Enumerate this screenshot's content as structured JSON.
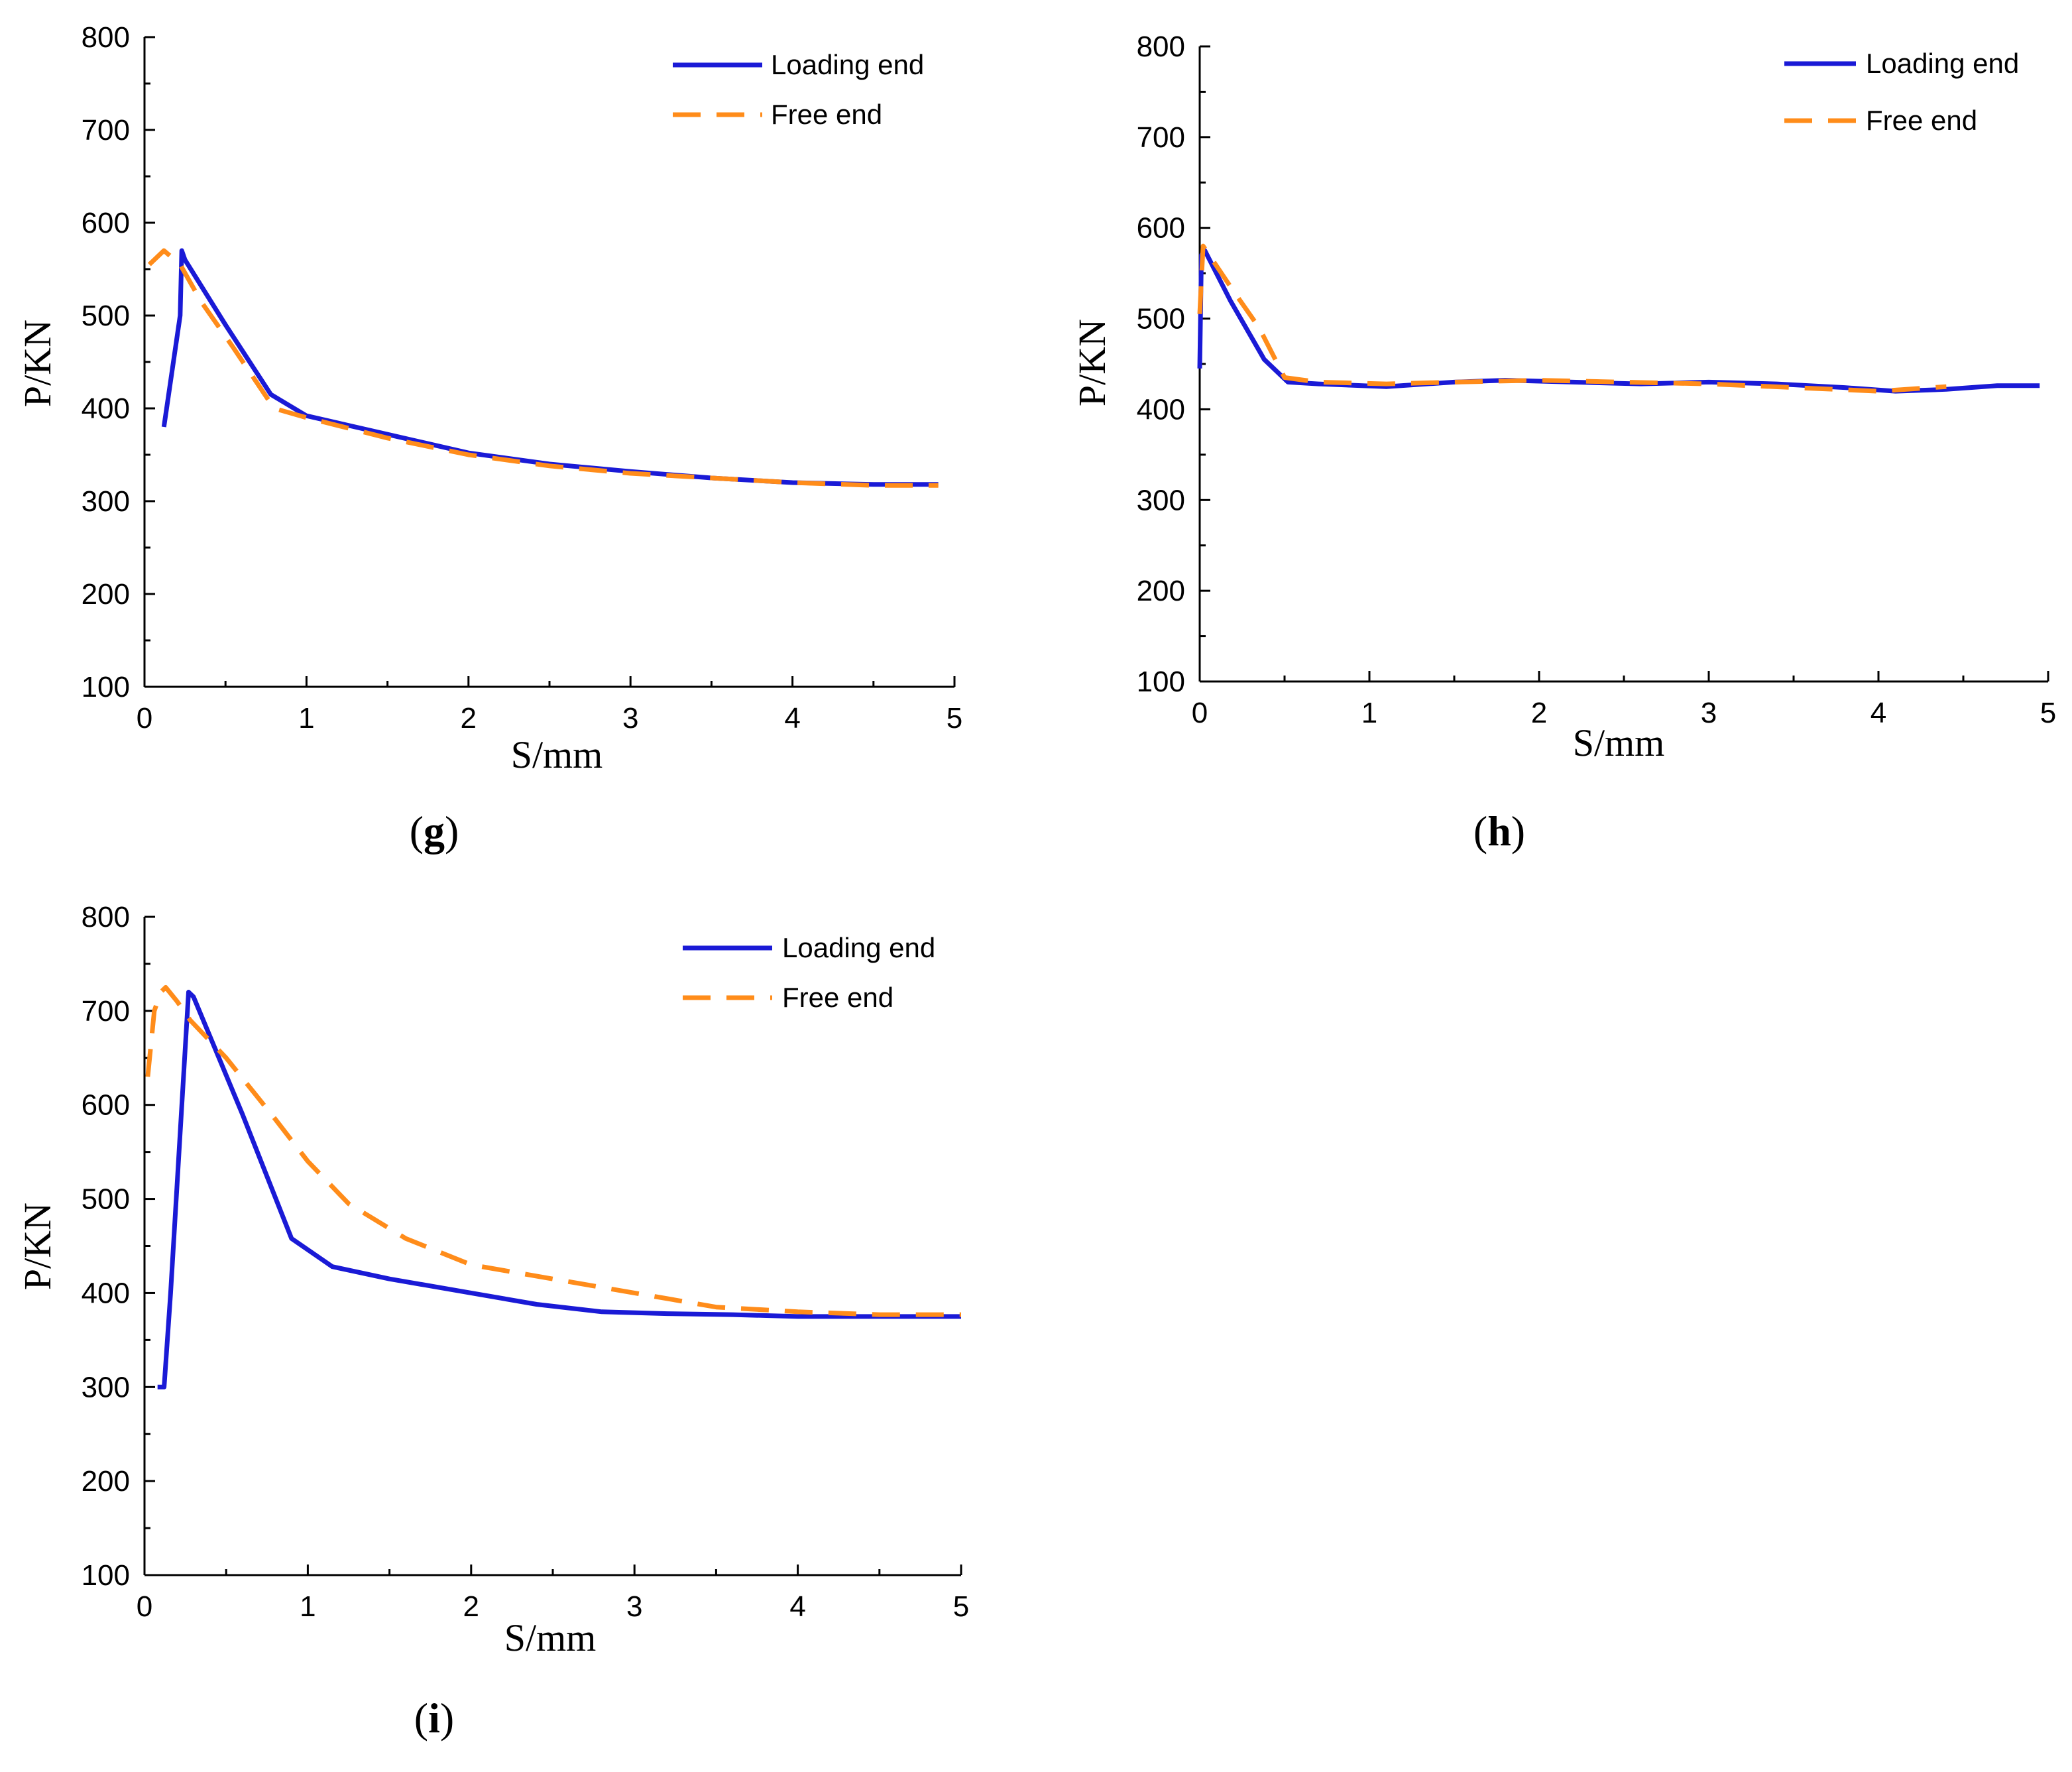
{
  "figure": {
    "charts": [
      {
        "id": "g",
        "panel_label": "g",
        "legend": {
          "placement": "top-right"
        }
      },
      {
        "id": "h",
        "panel_label": "h",
        "legend": {
          "placement": "top-right"
        }
      },
      {
        "id": "i",
        "panel_label": "i",
        "legend": {
          "placement": "top-right"
        }
      }
    ]
  },
  "colors": {
    "loading_end": "#1a1ad6",
    "free_end": "#ff8c1a",
    "axis": "#000000"
  },
  "chart_data": [
    {
      "type": "line",
      "panel": "g",
      "title": "",
      "xlabel": "S/mm",
      "ylabel": "P/KN",
      "xlim": [
        0,
        5
      ],
      "ylim": [
        100,
        800
      ],
      "xticks": [
        0,
        1,
        2,
        3,
        4,
        5
      ],
      "yticks": [
        100,
        200,
        300,
        400,
        500,
        600,
        700,
        800
      ],
      "grid": false,
      "series": [
        {
          "name": "Loading end",
          "style": "solid",
          "x": [
            0.12,
            0.22,
            0.23,
            0.25,
            0.5,
            0.78,
            1.0,
            1.5,
            2.0,
            2.5,
            3.0,
            3.5,
            4.0,
            4.5,
            4.9
          ],
          "y": [
            380,
            500,
            570,
            560,
            490,
            415,
            392,
            372,
            352,
            340,
            332,
            325,
            320,
            318,
            318
          ]
        },
        {
          "name": "Free end",
          "style": "dashed",
          "x": [
            0.03,
            0.12,
            0.22,
            0.35,
            0.55,
            0.8,
            1.0,
            1.5,
            2.0,
            2.5,
            3.0,
            3.5,
            4.0,
            4.5,
            4.9
          ],
          "y": [
            555,
            570,
            555,
            515,
            465,
            400,
            390,
            368,
            350,
            338,
            330,
            325,
            320,
            317,
            317
          ]
        }
      ]
    },
    {
      "type": "line",
      "panel": "h",
      "title": "",
      "xlabel": "S/mm",
      "ylabel": "P/KN",
      "xlim": [
        0,
        5
      ],
      "ylim": [
        100,
        800
      ],
      "xticks": [
        0,
        1,
        2,
        3,
        4,
        5
      ],
      "yticks": [
        100,
        200,
        300,
        400,
        500,
        600,
        700,
        800
      ],
      "grid": false,
      "series": [
        {
          "name": "Loading end",
          "style": "solid",
          "x": [
            0.0,
            0.01,
            0.03,
            0.18,
            0.38,
            0.52,
            0.7,
            1.1,
            1.5,
            1.8,
            2.2,
            2.6,
            3.0,
            3.4,
            3.8,
            4.1,
            4.4,
            4.7,
            4.95
          ],
          "y": [
            445,
            570,
            575,
            520,
            455,
            430,
            428,
            425,
            430,
            432,
            430,
            428,
            430,
            428,
            424,
            420,
            422,
            426,
            426
          ]
        },
        {
          "name": "Free end",
          "style": "dashed",
          "x": [
            0.0,
            0.02,
            0.2,
            0.35,
            0.5,
            0.7,
            1.1,
            1.5,
            2.0,
            2.5,
            3.0,
            3.5,
            4.0,
            4.4
          ],
          "y": [
            505,
            580,
            530,
            490,
            435,
            430,
            428,
            430,
            432,
            430,
            428,
            424,
            420,
            425
          ]
        }
      ]
    },
    {
      "type": "line",
      "panel": "i",
      "title": "",
      "xlabel": "S/mm",
      "ylabel": "P/KN",
      "xlim": [
        0,
        5
      ],
      "ylim": [
        100,
        800
      ],
      "xticks": [
        0,
        1,
        2,
        3,
        4,
        5
      ],
      "yticks": [
        100,
        200,
        300,
        400,
        500,
        600,
        700,
        800
      ],
      "grid": false,
      "series": [
        {
          "name": "Loading end",
          "style": "solid",
          "x": [
            0.08,
            0.12,
            0.16,
            0.27,
            0.3,
            0.6,
            0.9,
            1.15,
            1.5,
            2.0,
            2.4,
            2.8,
            3.2,
            3.6,
            4.0,
            4.5,
            5.0
          ],
          "y": [
            300,
            300,
            400,
            720,
            715,
            590,
            458,
            428,
            415,
            400,
            388,
            380,
            378,
            377,
            375,
            375,
            375
          ]
        },
        {
          "name": "Free end",
          "style": "dashed",
          "x": [
            0.02,
            0.06,
            0.1,
            0.13,
            0.2,
            0.28,
            0.5,
            0.8,
            1.0,
            1.25,
            1.6,
            2.0,
            2.5,
            3.0,
            3.5,
            4.0,
            4.5,
            5.0
          ],
          "y": [
            630,
            700,
            720,
            725,
            710,
            690,
            650,
            585,
            540,
            495,
            458,
            430,
            415,
            400,
            385,
            380,
            377,
            377
          ]
        }
      ]
    }
  ]
}
